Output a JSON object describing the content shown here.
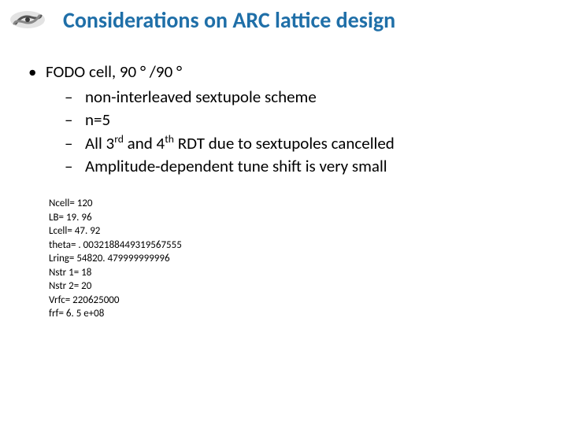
{
  "title": {
    "text": "Considerations on ARC lattice design",
    "color": "#1f6fa8",
    "fontsize": 28,
    "fontweight": 700
  },
  "main_bullet": {
    "text_before": "FODO cell, 90 ",
    "degree1": "°",
    "text_mid": " /90 ",
    "degree2": "°",
    "fontsize": 21
  },
  "sub_bullets": [
    {
      "text": "non-interleaved sextupole scheme"
    },
    {
      "text": "n=5"
    },
    {
      "html": "All 3<sup>rd</sup> and 4<sup>th</sup> RDT due to sextupoles cancelled"
    },
    {
      "text": "Amplitude-dependent tune shift is very small"
    }
  ],
  "params": [
    "Ncell= 120",
    "LB= 19. 96",
    "Lcell= 47. 92",
    "theta= . 0032188449319567555",
    "Lring= 54820. 479999999996",
    "Nstr 1= 18",
    "Nstr 2= 20",
    "Vrfc= 220625000",
    "frf= 6. 5 e+08"
  ],
  "params_fontsize": 13,
  "colors": {
    "title": "#1f6fa8",
    "body": "#000000",
    "background": "#ffffff"
  },
  "logo": {
    "desc": "galaxy-swirl-logo",
    "fill_dark": "#4a4a4a",
    "fill_light": "#b8b8b8"
  }
}
